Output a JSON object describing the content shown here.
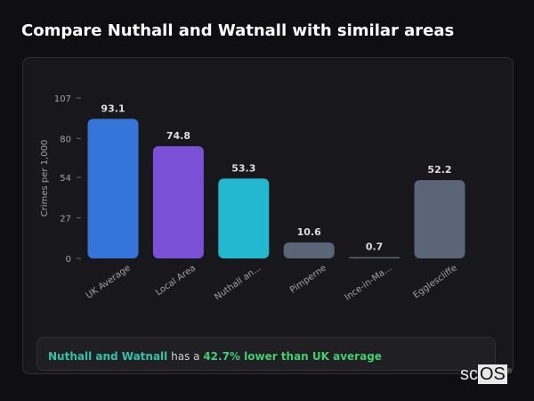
{
  "title": "Compare Nuthall and Watnall with similar areas",
  "chart_data": {
    "type": "bar",
    "ylabel": "Crimes per 1,000",
    "ylim": [
      0,
      107
    ],
    "yticks": [
      0,
      27,
      54,
      80,
      107
    ],
    "grid": false,
    "categories": [
      "UK Average",
      "Local Area",
      "Nuthall an...",
      "Pimperne",
      "Ince-in-Ma...",
      "Egglescliffe"
    ],
    "values": [
      93.1,
      74.8,
      53.3,
      10.6,
      0.7,
      52.2
    ],
    "labels": [
      "93.1",
      "74.8",
      "53.3",
      "10.6",
      "0.7",
      "52.2"
    ],
    "colors": [
      "#3574d8",
      "#7a50d6",
      "#22b8d0",
      "#5a6578",
      "#5a6578",
      "#5a6578"
    ]
  },
  "summary": {
    "area": "Nuthall and Watnall",
    "middle": " has a ",
    "stat": "42.7% lower than UK average"
  },
  "logo": {
    "text_a": "sc",
    "text_b": "OS",
    "mark": "®"
  }
}
